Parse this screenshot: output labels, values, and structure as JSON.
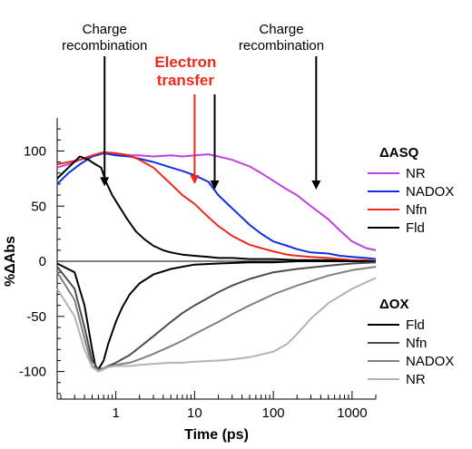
{
  "chart_data": {
    "type": "line",
    "xlabel": "Time (ps)",
    "ylabel": "%ΔAbs",
    "xscale": "log",
    "xlim": [
      0.18,
      2000
    ],
    "ylim": [
      -125,
      130
    ],
    "x_ticks": [
      1,
      10,
      100,
      1000
    ],
    "x_tick_labels": [
      "1",
      "10",
      "100",
      "1000"
    ],
    "y_ticks": [
      100,
      50,
      0,
      -50,
      -100
    ],
    "y_tick_labels": [
      "100",
      "50",
      "0",
      "-50",
      "-100"
    ],
    "legend_groups": [
      {
        "title": "ΔASQ",
        "position": "right-upper",
        "entries": [
          {
            "label": "NR",
            "color": "#c040e0"
          },
          {
            "label": "NADOX",
            "color": "#1030e0"
          },
          {
            "label": "Nfn",
            "color": "#ee2a1b"
          },
          {
            "label": "Fld",
            "color": "#000000"
          }
        ]
      },
      {
        "title": "ΔOX",
        "position": "right-lower",
        "entries": [
          {
            "label": "Fld",
            "color": "#000000"
          },
          {
            "label": "Nfn",
            "color": "#4d4d4d"
          },
          {
            "label": "NADOX",
            "color": "#808080"
          },
          {
            "label": "NR",
            "color": "#b3b3b3"
          }
        ]
      }
    ],
    "annotations": [
      {
        "text": [
          "Charge",
          "recombination"
        ],
        "color": "#000000",
        "arrow_x": 0.72,
        "arrow_y": 68
      },
      {
        "text": [
          "Electron",
          "transfer"
        ],
        "color": "#ee2a1b",
        "arrow_x": 10,
        "arrow_y": 70
      },
      {
        "text": [
          "Charge",
          "recombination"
        ],
        "color": "#000000",
        "arrow_x": 350,
        "arrow_y": 65,
        "extra_arrow_x": 18,
        "extra_arrow_y": 65
      }
    ],
    "series": [
      {
        "group": "ΔASQ",
        "name": "NR",
        "color": "#c040e0",
        "x": [
          0.18,
          0.25,
          0.35,
          0.5,
          0.7,
          1,
          1.5,
          2,
          3,
          5,
          7,
          10,
          15,
          20,
          30,
          50,
          70,
          100,
          150,
          200,
          300,
          500,
          700,
          1000,
          1500,
          2000
        ],
        "y": [
          85,
          88,
          92,
          95,
          98,
          97,
          96,
          96,
          95,
          96,
          95,
          96,
          97,
          95,
          92,
          86,
          80,
          73,
          65,
          60,
          50,
          38,
          28,
          18,
          12,
          10
        ]
      },
      {
        "group": "ΔASQ",
        "name": "NADOX",
        "color": "#1030e0",
        "x": [
          0.18,
          0.25,
          0.35,
          0.5,
          0.7,
          1,
          1.5,
          2,
          3,
          5,
          7,
          10,
          15,
          20,
          30,
          50,
          70,
          100,
          150,
          200,
          300,
          500,
          700,
          1000,
          1500,
          2000
        ],
        "y": [
          70,
          80,
          88,
          95,
          98,
          96,
          95,
          93,
          90,
          85,
          82,
          78,
          72,
          60,
          48,
          33,
          25,
          18,
          14,
          11,
          8,
          7,
          5,
          4,
          3,
          2
        ]
      },
      {
        "group": "ΔASQ",
        "name": "Nfn",
        "color": "#ee2a1b",
        "x": [
          0.18,
          0.25,
          0.35,
          0.5,
          0.7,
          1,
          1.5,
          2,
          3,
          5,
          7,
          10,
          15,
          20,
          30,
          50,
          70,
          100,
          150,
          200,
          300,
          500,
          700,
          1000,
          1500,
          2000
        ],
        "y": [
          88,
          90,
          92,
          96,
          99,
          98,
          96,
          92,
          85,
          70,
          60,
          52,
          40,
          32,
          23,
          15,
          12,
          9,
          6,
          5,
          4,
          3,
          2,
          1,
          1,
          0
        ]
      },
      {
        "group": "ΔASQ",
        "name": "Fld",
        "color": "#000000",
        "x": [
          0.18,
          0.25,
          0.35,
          0.45,
          0.55,
          0.65,
          0.75,
          0.9,
          1.1,
          1.4,
          1.8,
          2.3,
          3,
          4,
          5,
          7,
          10,
          15,
          20,
          30,
          50,
          100,
          200,
          500,
          1000,
          2000
        ],
        "y": [
          75,
          85,
          95,
          92,
          88,
          85,
          72,
          60,
          50,
          38,
          27,
          20,
          14,
          10,
          8,
          6,
          5,
          4,
          3,
          3,
          2,
          2,
          1,
          1,
          0,
          0
        ]
      },
      {
        "group": "ΔOX",
        "name": "Fld",
        "color": "#000000",
        "x": [
          0.18,
          0.3,
          0.4,
          0.5,
          0.55,
          0.6,
          0.7,
          0.8,
          1,
          1.2,
          1.5,
          2,
          3,
          5,
          7,
          10,
          20,
          50,
          100,
          200,
          500,
          1000,
          2000
        ],
        "y": [
          -2,
          -10,
          -40,
          -80,
          -95,
          -98,
          -90,
          -75,
          -55,
          -42,
          -30,
          -20,
          -12,
          -7,
          -5,
          -3,
          -2,
          -1,
          -1,
          0,
          0,
          0,
          0
        ]
      },
      {
        "group": "ΔOX",
        "name": "Nfn",
        "color": "#4d4d4d",
        "x": [
          0.18,
          0.3,
          0.4,
          0.5,
          0.6,
          0.7,
          0.8,
          1,
          1.5,
          2,
          3,
          5,
          7,
          10,
          20,
          30,
          50,
          100,
          200,
          500,
          1000,
          2000
        ],
        "y": [
          -5,
          -25,
          -60,
          -90,
          -98,
          -97,
          -95,
          -92,
          -85,
          -78,
          -68,
          -55,
          -47,
          -40,
          -28,
          -22,
          -16,
          -10,
          -7,
          -4,
          -2,
          -1
        ]
      },
      {
        "group": "ΔOX",
        "name": "NADOX",
        "color": "#808080",
        "x": [
          0.18,
          0.3,
          0.4,
          0.5,
          0.6,
          0.7,
          0.8,
          1,
          1.5,
          2,
          3,
          5,
          7,
          10,
          20,
          30,
          50,
          100,
          200,
          500,
          1000,
          2000
        ],
        "y": [
          -10,
          -35,
          -70,
          -95,
          -99,
          -97,
          -96,
          -94,
          -92,
          -89,
          -84,
          -77,
          -72,
          -66,
          -55,
          -48,
          -40,
          -30,
          -22,
          -13,
          -8,
          -5
        ]
      },
      {
        "group": "ΔOX",
        "name": "NR",
        "color": "#b3b3b3",
        "x": [
          0.18,
          0.3,
          0.4,
          0.5,
          0.6,
          0.7,
          0.8,
          1,
          1.5,
          2,
          3,
          5,
          7,
          10,
          20,
          30,
          50,
          100,
          150,
          200,
          300,
          500,
          1000,
          2000
        ],
        "y": [
          -25,
          -50,
          -80,
          -96,
          -100,
          -98,
          -96,
          -95,
          -95,
          -94,
          -93,
          -92,
          -92,
          -91,
          -90,
          -89,
          -87,
          -82,
          -75,
          -66,
          -52,
          -38,
          -25,
          -15
        ]
      }
    ]
  }
}
